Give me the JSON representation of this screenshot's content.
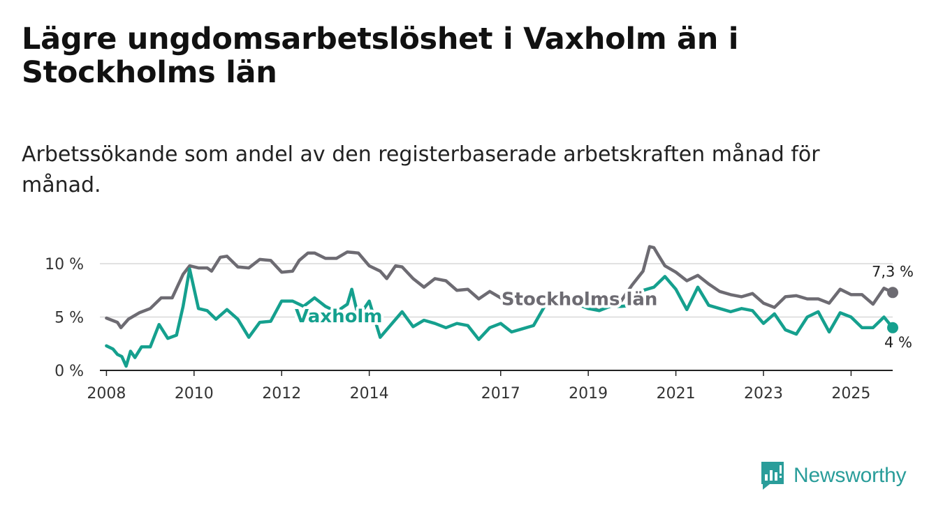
{
  "title": "Lägre ungdomsarbetslöshet i Vaxholm än i Stockholms län",
  "subtitle": "Arbetssökande som andel av den registerbaserade arbetskraften månad för månad.",
  "brand": "Newsworthy",
  "colors": {
    "vaxholm": "#15a08e",
    "stockholm": "#6d6b72",
    "grid": "#d8d8d8",
    "axis": "#222222",
    "brand": "#2a9d9a"
  },
  "chart_data": {
    "type": "line",
    "title": "Lägre ungdomsarbetslöshet i Vaxholm än i Stockholms län",
    "xlabel": "",
    "ylabel": "",
    "xlim": [
      2007.85,
      2025.95
    ],
    "ylim": [
      0,
      10
    ],
    "x_ticks": [
      2008,
      2010,
      2012,
      2014,
      2017,
      2019,
      2021,
      2023,
      2025
    ],
    "x_tick_labels": [
      "2008",
      "2010",
      "2012",
      "2014",
      "2017",
      "2019",
      "2021",
      "2023",
      "2025"
    ],
    "y_ticks": [
      0,
      5,
      10
    ],
    "y_tick_labels": [
      "0 %",
      "5 %",
      "10 %"
    ],
    "series": [
      {
        "name": "Stockholms län",
        "key": "stockholm",
        "label_at": [
          2018.8,
          6.7
        ],
        "end_label": "7,3 %",
        "x": [
          2008.0,
          2008.25,
          2008.33,
          2008.5,
          2008.75,
          2009.0,
          2009.25,
          2009.5,
          2009.75,
          2009.9,
          2010.1,
          2010.3,
          2010.4,
          2010.6,
          2010.75,
          2011.0,
          2011.25,
          2011.5,
          2011.75,
          2012.0,
          2012.25,
          2012.4,
          2012.6,
          2012.75,
          2013.0,
          2013.25,
          2013.5,
          2013.75,
          2014.0,
          2014.25,
          2014.4,
          2014.6,
          2014.75,
          2015.0,
          2015.25,
          2015.5,
          2015.75,
          2016.0,
          2016.25,
          2016.5,
          2016.75,
          2017.0,
          2017.25,
          2017.5,
          2017.75,
          2018.0,
          2018.25,
          2018.5,
          2018.75,
          2019.0,
          2019.25,
          2019.5,
          2019.75,
          2020.0,
          2020.25,
          2020.4,
          2020.5,
          2020.6,
          2020.75,
          2021.0,
          2021.25,
          2021.5,
          2021.75,
          2022.0,
          2022.25,
          2022.5,
          2022.75,
          2023.0,
          2023.25,
          2023.5,
          2023.75,
          2024.0,
          2024.25,
          2024.5,
          2024.75,
          2025.0,
          2025.25,
          2025.5,
          2025.75,
          2025.95
        ],
        "values": [
          4.9,
          4.5,
          4.0,
          4.8,
          5.4,
          5.8,
          6.8,
          6.8,
          9.0,
          9.8,
          9.6,
          9.6,
          9.3,
          10.6,
          10.7,
          9.7,
          9.6,
          10.4,
          10.3,
          9.2,
          9.3,
          10.3,
          11.0,
          11.0,
          10.5,
          10.5,
          11.1,
          11.0,
          9.8,
          9.3,
          8.6,
          9.8,
          9.7,
          8.6,
          7.8,
          8.6,
          8.4,
          7.5,
          7.6,
          6.7,
          7.4,
          6.8,
          6.5,
          6.2,
          7.0,
          6.6,
          6.7,
          6.8,
          6.7,
          6.0,
          5.6,
          6.1,
          6.5,
          8.0,
          9.3,
          11.6,
          11.5,
          10.8,
          9.8,
          9.2,
          8.4,
          8.9,
          8.1,
          7.4,
          7.1,
          6.9,
          7.2,
          6.3,
          5.9,
          6.9,
          7.0,
          6.7,
          6.7,
          6.3,
          7.6,
          7.1,
          7.1,
          6.2,
          7.7,
          7.3
        ]
      },
      {
        "name": "Vaxholm",
        "key": "vaxholm",
        "label_at": [
          2013.3,
          5.1
        ],
        "end_label": "4 %",
        "x": [
          2008.0,
          2008.15,
          2008.25,
          2008.35,
          2008.45,
          2008.55,
          2008.65,
          2008.8,
          2009.0,
          2009.2,
          2009.4,
          2009.6,
          2009.75,
          2009.9,
          2010.1,
          2010.3,
          2010.5,
          2010.75,
          2011.0,
          2011.25,
          2011.5,
          2011.75,
          2012.0,
          2012.25,
          2012.5,
          2012.75,
          2013.0,
          2013.25,
          2013.5,
          2013.6,
          2013.75,
          2014.0,
          2014.25,
          2014.5,
          2014.75,
          2015.0,
          2015.25,
          2015.5,
          2015.75,
          2016.0,
          2016.25,
          2016.5,
          2016.75,
          2017.0,
          2017.25,
          2017.5,
          2017.75,
          2018.0,
          2018.25,
          2018.5,
          2018.75,
          2019.0,
          2019.25,
          2019.5,
          2019.75,
          2020.0,
          2020.25,
          2020.5,
          2020.75,
          2021.0,
          2021.25,
          2021.5,
          2021.75,
          2022.0,
          2022.25,
          2022.5,
          2022.75,
          2023.0,
          2023.25,
          2023.5,
          2023.75,
          2024.0,
          2024.25,
          2024.5,
          2024.75,
          2025.0,
          2025.25,
          2025.5,
          2025.75,
          2025.95
        ],
        "values": [
          2.3,
          2.0,
          1.5,
          1.3,
          0.4,
          1.8,
          1.2,
          2.2,
          2.2,
          4.3,
          3.0,
          3.3,
          6.0,
          9.5,
          5.8,
          5.6,
          4.8,
          5.7,
          4.8,
          3.1,
          4.5,
          4.6,
          6.5,
          6.5,
          6.0,
          6.8,
          6.0,
          5.5,
          6.2,
          7.6,
          5.0,
          6.5,
          3.1,
          4.3,
          5.5,
          4.1,
          4.7,
          4.4,
          4.0,
          4.4,
          4.2,
          2.9,
          4.0,
          4.4,
          3.6,
          3.9,
          4.2,
          6.0,
          6.4,
          6.3,
          6.2,
          5.8,
          5.6,
          6.0,
          6.0,
          6.1,
          7.5,
          7.8,
          8.8,
          7.6,
          5.7,
          7.8,
          6.1,
          5.8,
          5.5,
          5.8,
          5.6,
          4.4,
          5.3,
          3.8,
          3.4,
          5.0,
          5.5,
          3.6,
          5.4,
          5.0,
          4.0,
          4.0,
          5.0,
          4.0
        ]
      }
    ]
  }
}
